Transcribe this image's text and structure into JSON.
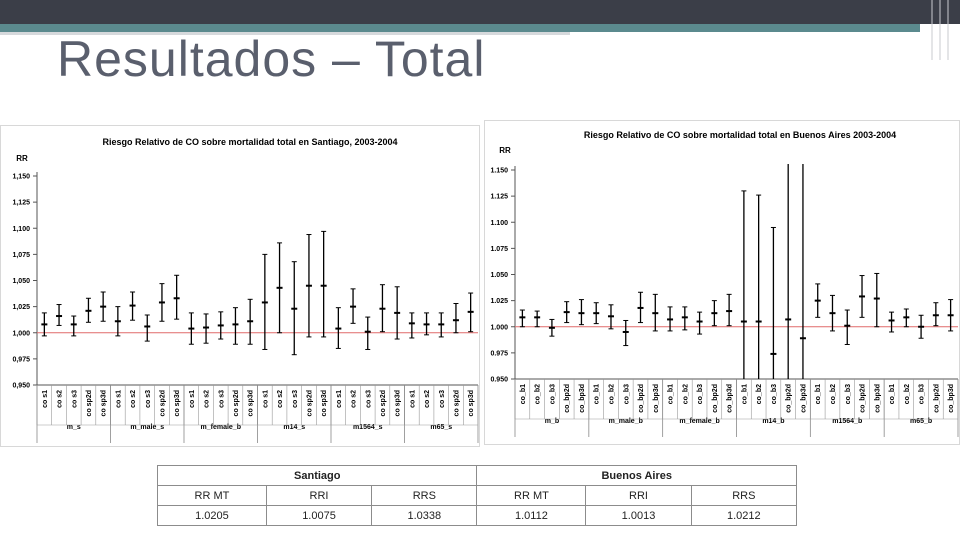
{
  "slide_title": "Resultados – Total",
  "chart_data": [
    {
      "type": "errorbar",
      "title": "Riesgo Relativo de CO sobre mortalidad total en Santiago, 2003-2004",
      "y_label": "RR",
      "categories": [
        "co s1",
        "co s2",
        "co s3",
        "co sp2d",
        "co sp3d",
        "co s1",
        "co s2",
        "co s3",
        "co sp2d",
        "co sp3d",
        "co s1",
        "co s2",
        "co s3",
        "co sp2d",
        "co sp3d",
        "co s1",
        "co s2",
        "co s3",
        "co sp2d",
        "co sp3d",
        "co s1",
        "co s2",
        "co s3",
        "co sp2d",
        "co sp3d",
        "co s1",
        "co s2",
        "co s3",
        "co sp2d",
        "co sp3d"
      ],
      "groups": [
        "m_s",
        "m_male_s",
        "m_female_b",
        "m14_s",
        "m1564_s",
        "m65_s"
      ],
      "values": [
        1.008,
        1.016,
        1.008,
        1.021,
        1.025,
        1.011,
        1.026,
        1.006,
        1.029,
        1.033,
        1.004,
        1.005,
        1.007,
        1.008,
        1.011,
        1.029,
        1.043,
        1.023,
        1.045,
        1.045,
        1.004,
        1.025,
        1.001,
        1.023,
        1.019,
        1.009,
        1.008,
        1.008,
        1.012,
        1.02
      ],
      "lower": [
        0.997,
        1.007,
        0.997,
        1.01,
        1.011,
        0.997,
        1.012,
        0.992,
        1.011,
        1.013,
        0.989,
        0.99,
        0.994,
        0.989,
        0.989,
        0.984,
        1.0,
        0.979,
        0.996,
        0.996,
        0.985,
        1.009,
        0.984,
        1.001,
        0.994,
        0.995,
        0.998,
        0.996,
        1.0,
        1.001
      ],
      "upper": [
        1.019,
        1.027,
        1.016,
        1.033,
        1.039,
        1.025,
        1.039,
        1.017,
        1.047,
        1.055,
        1.019,
        1.018,
        1.02,
        1.024,
        1.032,
        1.075,
        1.086,
        1.068,
        1.094,
        1.097,
        1.024,
        1.042,
        1.015,
        1.046,
        1.044,
        1.019,
        1.019,
        1.019,
        1.028,
        1.038
      ],
      "color": "#000000",
      "reference_line": 1,
      "reference_color": "#e06a6a",
      "ylim": [
        0.95,
        1.15
      ],
      "yticks": [
        {
          "value": 0.95,
          "label": "0,950"
        },
        {
          "value": 0.975,
          "label": "0,975"
        },
        {
          "value": 1,
          "label": "1,000"
        },
        {
          "value": 1.025,
          "label": "1,025"
        },
        {
          "value": 1.05,
          "label": "1,050"
        },
        {
          "value": 1.075,
          "label": "1,075"
        },
        {
          "value": 1.1,
          "label": "1,100"
        },
        {
          "value": 1.125,
          "label": "1,125"
        },
        {
          "value": 1.15,
          "label": "1,150"
        }
      ]
    },
    {
      "type": "errorbar",
      "title": "Riesgo Relativo de CO sobre mortalidad total en Buenos Aires 2003-2004",
      "y_label": "RR",
      "categories": [
        "co_b1",
        "co_b2",
        "co_b3",
        "co_bp2d",
        "co_bp3d",
        "co_b1",
        "co_b2",
        "co_b3",
        "co_bp2d",
        "co_bp3d",
        "co_b1",
        "co_b2",
        "co_b3",
        "co_bp2d",
        "co_bp3d",
        "co_b1",
        "co_b2",
        "co_b3",
        "co_bp2d",
        "co_bp3d",
        "co_b1",
        "co_b2",
        "co_b3",
        "co_bp2d",
        "co_bp3d",
        "co_b1",
        "co_b2",
        "co_b3",
        "co_bp2d",
        "co_bp3d"
      ],
      "groups": [
        "m_b",
        "m_male_b",
        "m_female_b",
        "m14_b",
        "m1564_b",
        "m65_b"
      ],
      "values": [
        1.009,
        1.009,
        0.999,
        1.014,
        1.013,
        1.013,
        1.01,
        0.995,
        1.018,
        1.013,
        1.007,
        1.009,
        1.005,
        1.013,
        1.015,
        1.005,
        1.005,
        0.974,
        1.007,
        0.989,
        1.025,
        1.013,
        1.001,
        1.029,
        1.027,
        1.006,
        1.009,
        1.0,
        1.011,
        1.011
      ],
      "lower": [
        1.0,
        1.0,
        0.991,
        1.004,
        1.002,
        1.003,
        0.998,
        0.982,
        1.004,
        0.996,
        0.996,
        0.997,
        0.993,
        1.001,
        1.001,
        0.88,
        0.884,
        0.853,
        0.81,
        0.78,
        1.009,
        0.996,
        0.983,
        1.009,
        1.0,
        0.995,
        1.0,
        0.989,
        1.001,
        0.996
      ],
      "upper": [
        1.016,
        1.015,
        1.007,
        1.024,
        1.026,
        1.023,
        1.021,
        1.006,
        1.033,
        1.031,
        1.019,
        1.019,
        1.014,
        1.025,
        1.031,
        1.13,
        1.126,
        1.095,
        1.2,
        1.2,
        1.041,
        1.03,
        1.016,
        1.049,
        1.051,
        1.014,
        1.017,
        1.011,
        1.023,
        1.026
      ],
      "color": "#000000",
      "reference_line": 1,
      "reference_color": "#e06a6a",
      "ylim": [
        0.95,
        1.15
      ],
      "yticks": [
        {
          "value": 0.95,
          "label": "0.950"
        },
        {
          "value": 0.975,
          "label": "0.975"
        },
        {
          "value": 1,
          "label": "1.000"
        },
        {
          "value": 1.025,
          "label": "1.025"
        },
        {
          "value": 1.05,
          "label": "1.050"
        },
        {
          "value": 1.075,
          "label": "1.075"
        },
        {
          "value": 1.1,
          "label": "1.100"
        },
        {
          "value": 1.125,
          "label": "1.125"
        },
        {
          "value": 1.15,
          "label": "1.150"
        }
      ]
    }
  ],
  "table": {
    "groups": [
      "Santiago",
      "Buenos Aires"
    ],
    "columns": [
      "RR MT",
      "RRI",
      "RRS",
      "RR MT",
      "RRI",
      "RRS"
    ],
    "rows": [
      [
        "1.0205",
        "1.0075",
        "1.0338",
        "1.0112",
        "1.0013",
        "1.0212"
      ]
    ]
  }
}
